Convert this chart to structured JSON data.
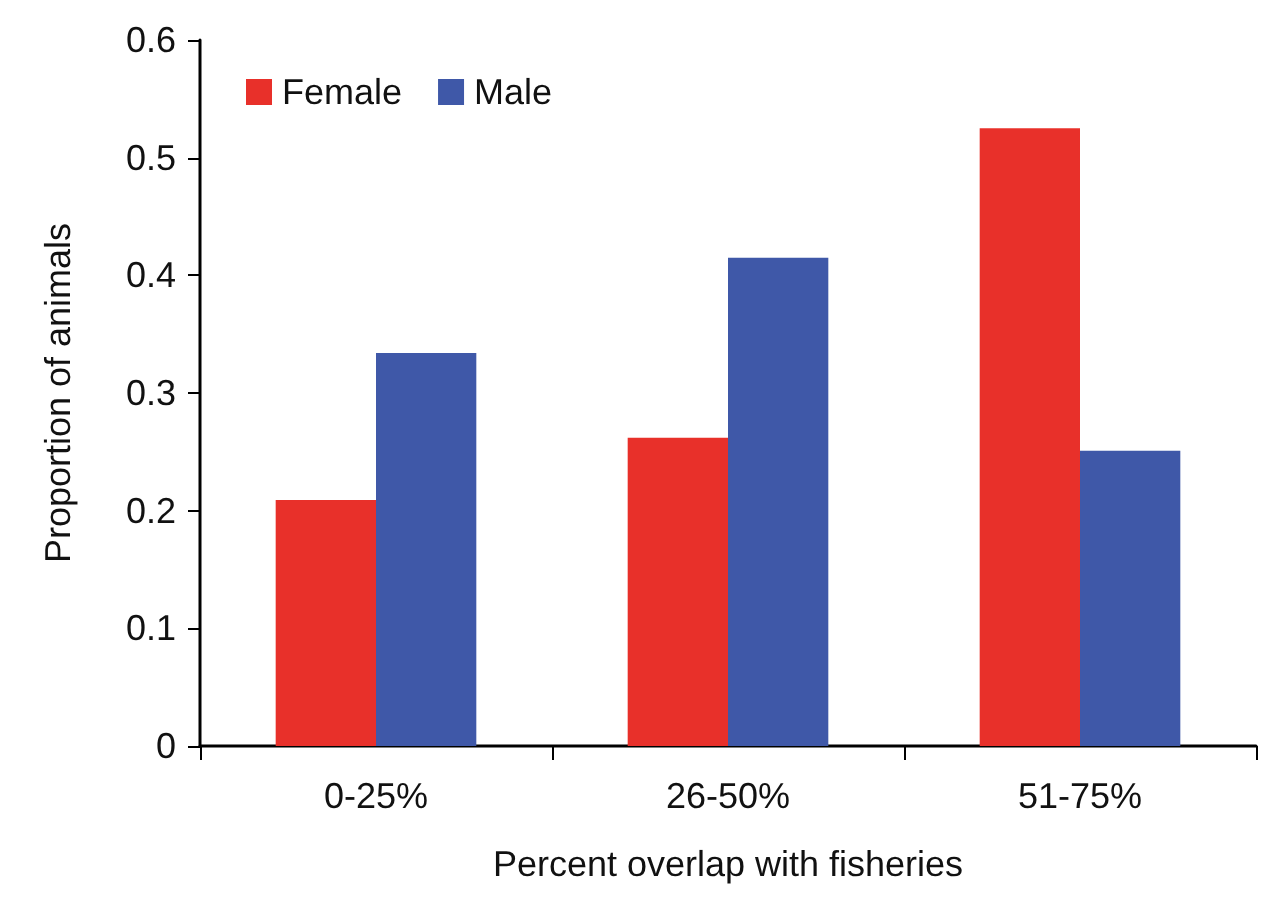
{
  "chart_data": {
    "type": "bar",
    "xlabel": "Percent overlap with fisheries",
    "ylabel": "Proportion of animals",
    "categories": [
      "0-25%",
      "26-50%",
      "51-75%"
    ],
    "series": [
      {
        "name": "Female",
        "color": "#e8302a",
        "values": [
          0.209,
          0.262,
          0.525
        ]
      },
      {
        "name": "Male",
        "color": "#3f58a8",
        "values": [
          0.334,
          0.415,
          0.251
        ]
      }
    ],
    "ylim": [
      0,
      0.6
    ],
    "yticks": [
      0,
      0.1,
      0.2,
      0.3,
      0.4,
      0.5,
      0.6
    ],
    "grid": false,
    "legend": "top left"
  }
}
